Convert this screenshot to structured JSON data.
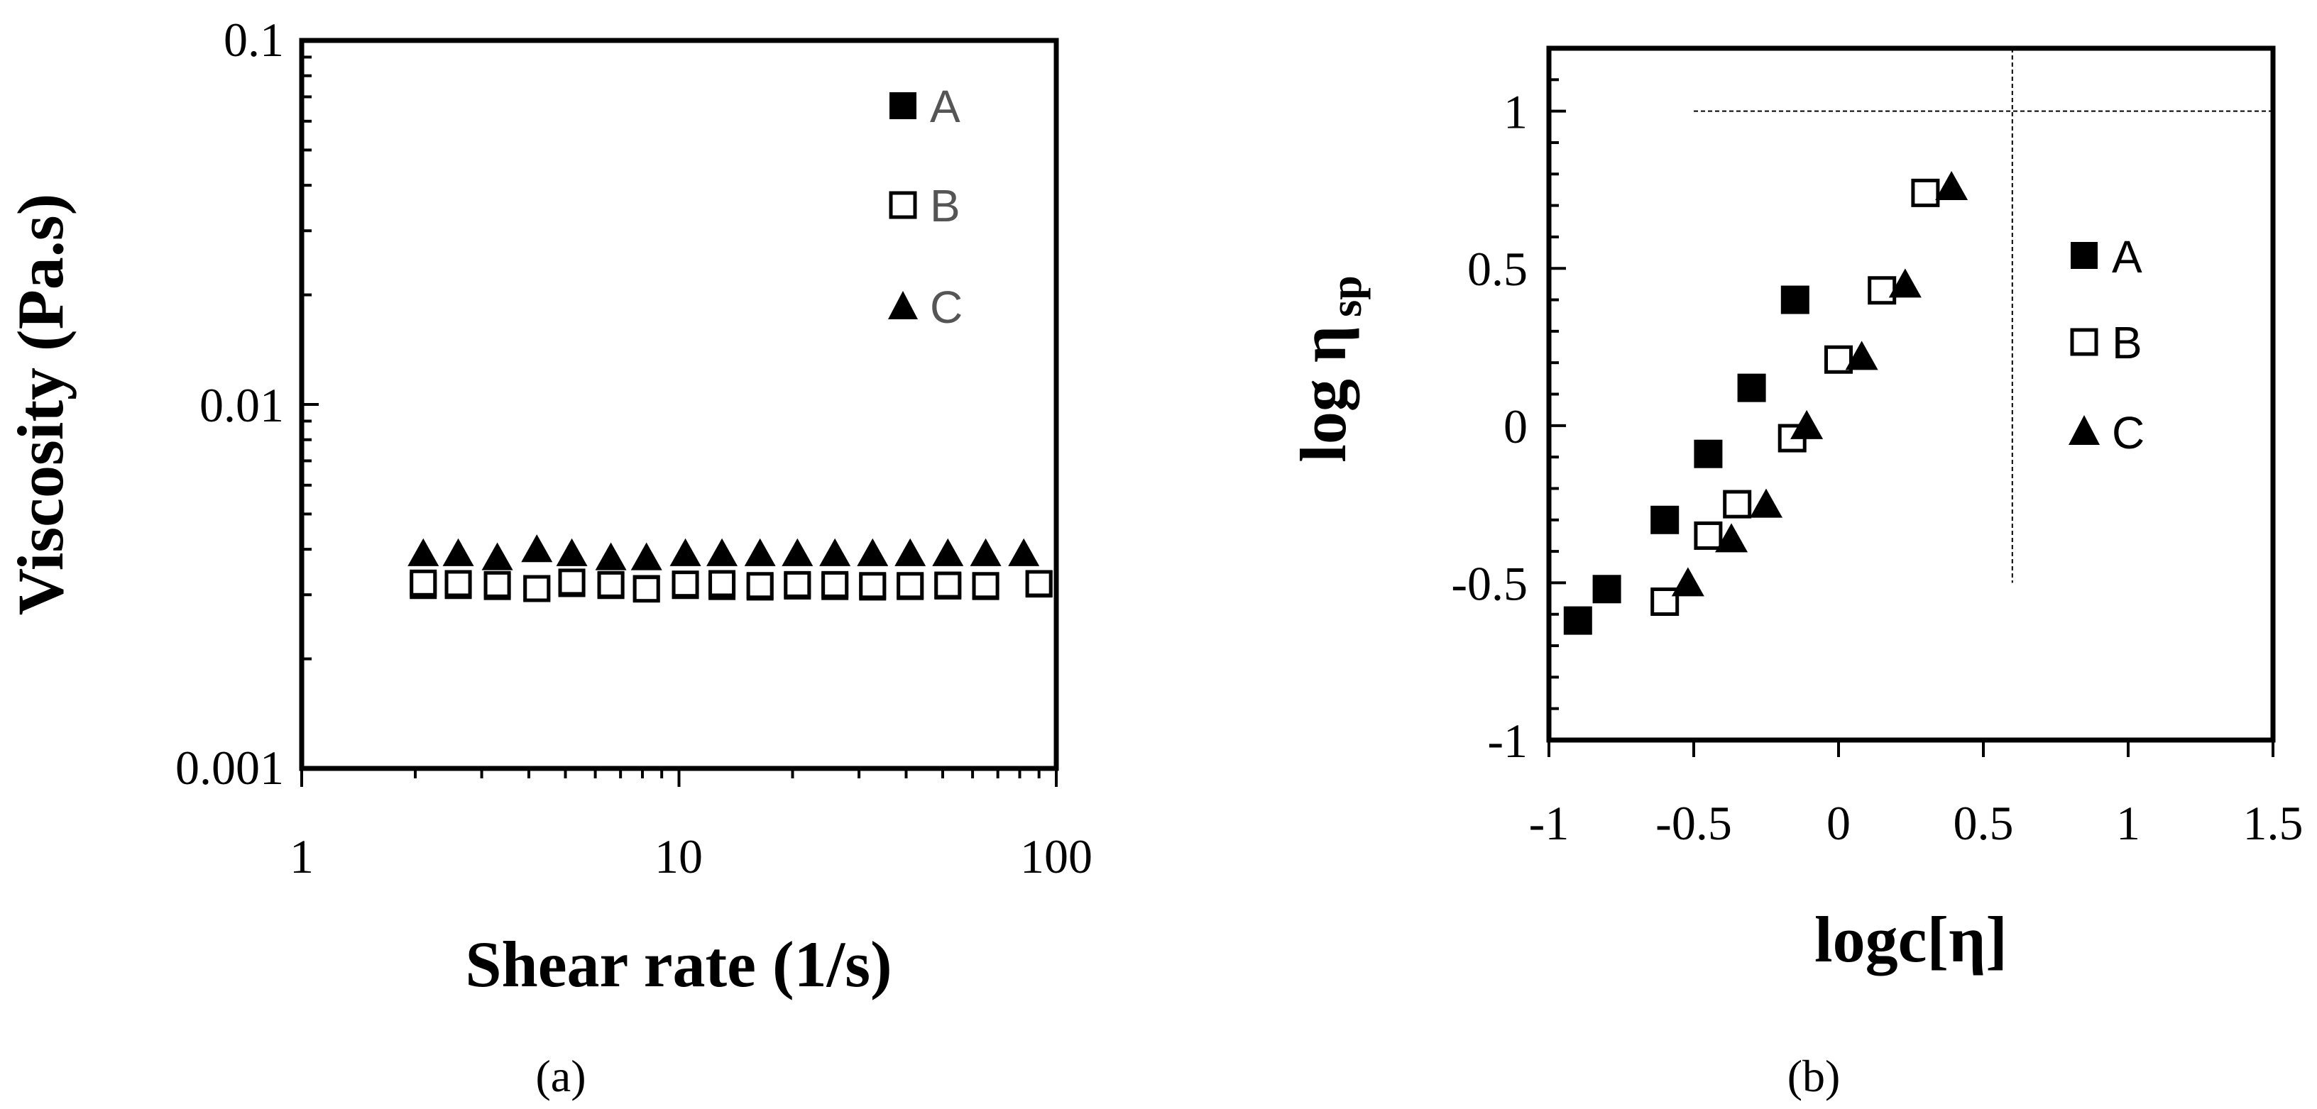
{
  "colors": {
    "ink": "#000000",
    "legend_text_a": "#555555",
    "background": "#ffffff"
  },
  "chart_data": [
    {
      "type": "scatter",
      "panel_label": "(a)",
      "xlabel": "Shear rate (1/s)",
      "ylabel": "Viscosity (Pa.s)",
      "xscale": "log",
      "yscale": "log",
      "xlim": [
        1,
        100
      ],
      "ylim": [
        0.001,
        0.1
      ],
      "xtick_labels": [
        "1",
        "10",
        "100"
      ],
      "ytick_labels": [
        "0.001",
        "0.01",
        "0.1"
      ],
      "legend": {
        "placement": "top-right",
        "entries": [
          "A",
          "B",
          "C"
        ]
      },
      "series": [
        {
          "name": "A",
          "marker": "filled-square",
          "x": [
            2.1,
            2.6,
            3.3,
            4.2,
            5.2,
            6.6,
            8.2,
            10.4,
            13,
            16.4,
            20.6,
            25.9,
            32.6,
            41,
            51.6,
            65,
            90
          ],
          "y": [
            0.00318,
            0.00318,
            0.00316,
            0.00312,
            0.00322,
            0.00318,
            0.00312,
            0.00318,
            0.00316,
            0.00315,
            0.00317,
            0.00316,
            0.00315,
            0.00316,
            0.00317,
            0.00316,
            0.00321
          ]
        },
        {
          "name": "B",
          "marker": "open-square",
          "x": [
            2.1,
            2.6,
            3.3,
            4.2,
            5.2,
            6.6,
            8.2,
            10.4,
            13,
            16.4,
            20.6,
            25.9,
            32.6,
            41,
            51.6,
            65,
            90
          ],
          "y": [
            0.00323,
            0.00322,
            0.0032,
            0.00312,
            0.00325,
            0.0032,
            0.00311,
            0.00321,
            0.00322,
            0.00318,
            0.0032,
            0.0032,
            0.00318,
            0.00318,
            0.00319,
            0.00318,
            0.00322
          ]
        },
        {
          "name": "C",
          "marker": "filled-triangle",
          "x": [
            2.1,
            2.6,
            3.3,
            4.2,
            5.2,
            6.6,
            8.2,
            10.4,
            13,
            16.4,
            20.6,
            25.9,
            32.6,
            41,
            51.6,
            65,
            82
          ],
          "y": [
            0.0039,
            0.0039,
            0.0038,
            0.004,
            0.0039,
            0.0038,
            0.0038,
            0.0039,
            0.0039,
            0.0039,
            0.0039,
            0.0039,
            0.0039,
            0.0039,
            0.0039,
            0.0039,
            0.0039
          ]
        }
      ]
    },
    {
      "type": "scatter",
      "panel_label": "(b)",
      "xlabel": "logc[η]",
      "ylabel_main": "log η",
      "ylabel_sub": "sp",
      "xlim": [
        -1,
        1.5
      ],
      "ylim": [
        -1,
        1.2
      ],
      "xtick_labels": [
        "-1",
        "-0.5",
        "0",
        "0.5",
        "1",
        "1.5"
      ],
      "xticks": [
        -1,
        -0.5,
        0,
        0.5,
        1,
        1.5
      ],
      "ytick_labels": [
        "-1",
        "-0.5",
        "0",
        "0.5",
        "1"
      ],
      "yticks": [
        -1,
        -0.5,
        0,
        0.5,
        1
      ],
      "reference_lines": {
        "horizontal_y": 1.0,
        "vertical_x": 0.6
      },
      "legend": {
        "placement": "right",
        "entries": [
          "A",
          "B",
          "C"
        ]
      },
      "series": [
        {
          "name": "A",
          "marker": "filled-square",
          "x": [
            -0.9,
            -0.8,
            -0.6,
            -0.45,
            -0.3,
            -0.15
          ],
          "y": [
            -0.62,
            -0.52,
            -0.3,
            -0.09,
            0.12,
            0.4
          ]
        },
        {
          "name": "B",
          "marker": "open-square",
          "x": [
            -0.6,
            -0.45,
            -0.35,
            -0.16,
            0,
            0.15,
            0.3
          ],
          "y": [
            -0.56,
            -0.35,
            -0.25,
            -0.04,
            0.21,
            0.43,
            0.74
          ]
        },
        {
          "name": "C",
          "marker": "filled-triangle",
          "x": [
            -0.52,
            -0.37,
            -0.25,
            -0.11,
            0.08,
            0.23,
            0.39
          ],
          "y": [
            -0.5,
            -0.36,
            -0.25,
            0.0,
            0.22,
            0.45,
            0.76
          ]
        }
      ]
    }
  ]
}
